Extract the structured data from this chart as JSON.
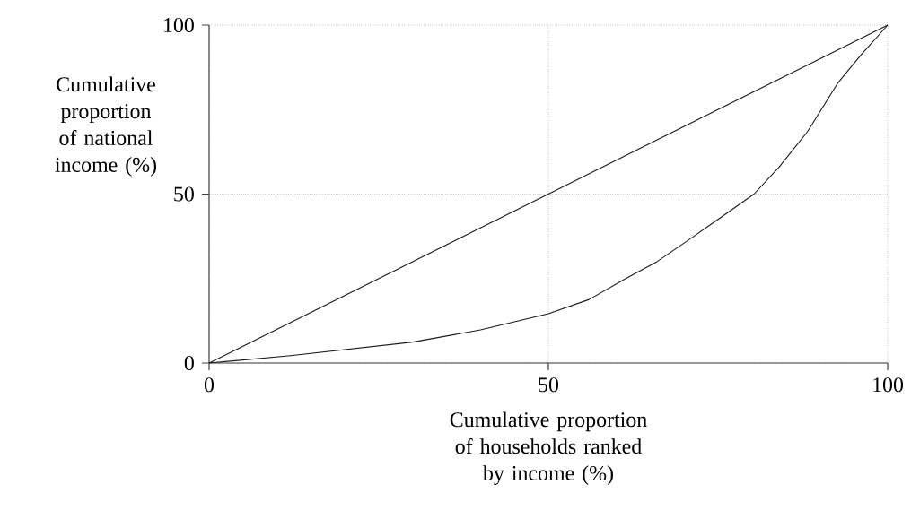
{
  "chart_data": {
    "type": "line",
    "xlabel": "Cumulative proportion of households ranked by income (%)",
    "ylabel": "Cumulative proportion of national income (%)",
    "xlim": [
      0,
      100
    ],
    "ylim": [
      0,
      100
    ],
    "xticks": [
      0,
      50,
      100
    ],
    "yticks": [
      0,
      50,
      100
    ],
    "grid": true,
    "line_style": "solid",
    "series": [
      {
        "color": "#1a1a1a",
        "x": [
          0,
          100
        ],
        "values": [
          0,
          100
        ]
      },
      {
        "color": "#1a1a1a",
        "x": [
          0,
          12,
          30,
          40,
          50,
          56,
          61.4,
          66,
          70,
          75,
          80.3,
          84,
          88.2,
          92.6,
          96,
          100
        ],
        "values": [
          0,
          2.2,
          6.2,
          9.8,
          14.6,
          18.8,
          25,
          30,
          35.5,
          42.5,
          50,
          58,
          68.5,
          82.7,
          91,
          100
        ]
      }
    ]
  }
}
